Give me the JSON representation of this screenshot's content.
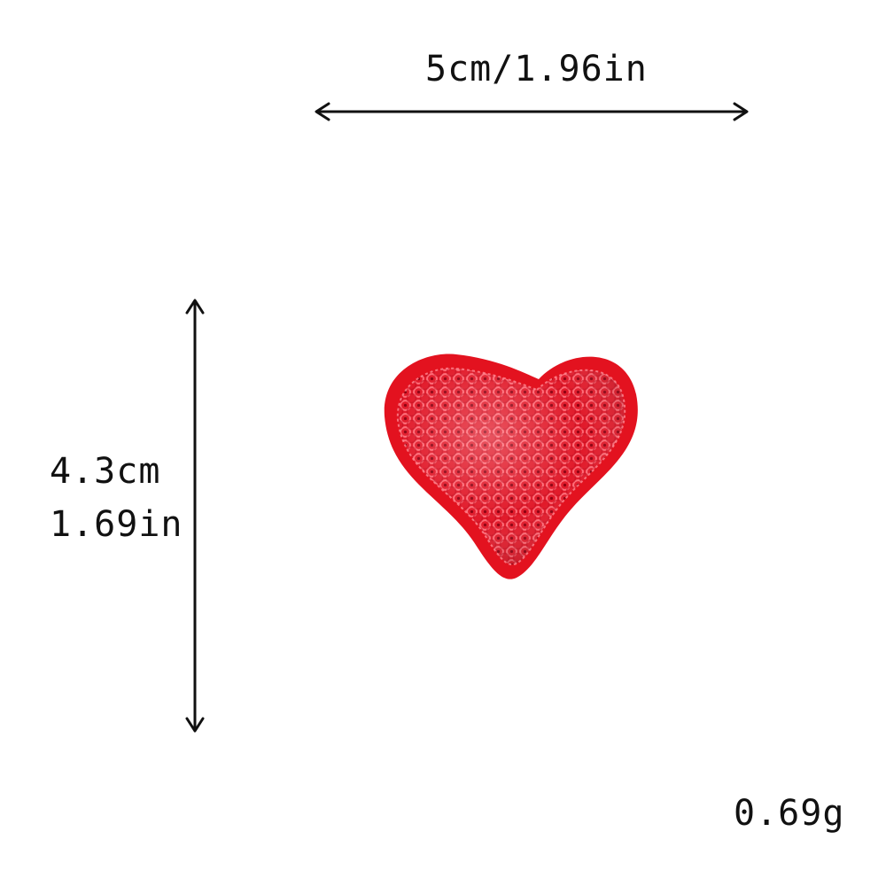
{
  "dimensions": {
    "width_label": "5cm/1.96in",
    "height_cm_label": "4.3cm",
    "height_in_label": "1.69in",
    "weight_label": "0.69g"
  },
  "product": {
    "icon": "sequin-heart-patch",
    "felt_color": "#e3121f",
    "sequin_color": "#f04050"
  },
  "colors": {
    "text": "#111111",
    "arrow": "#111111",
    "background": "#ffffff"
  }
}
